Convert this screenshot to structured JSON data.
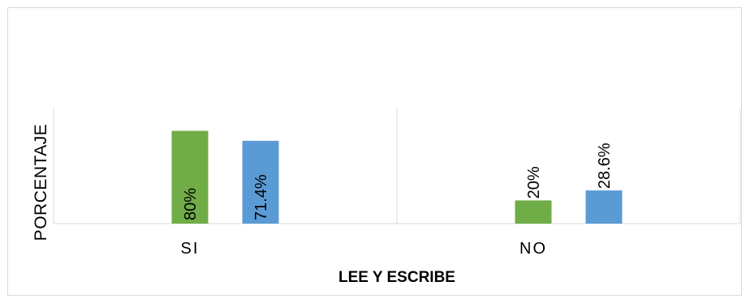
{
  "chart_data": {
    "type": "bar",
    "categories": [
      "SI",
      "NO"
    ],
    "series": [
      {
        "values": [
          80,
          20
        ],
        "labels": [
          "80%",
          "20%"
        ],
        "color": "#70ad47"
      },
      {
        "values": [
          71.4,
          28.6
        ],
        "labels": [
          "71.4%",
          "28.6%"
        ],
        "color": "#5b9bd5"
      }
    ],
    "xlabel": "LEE Y ESCRIBE",
    "ylabel": "PORCENTAJE",
    "ylim": [
      0,
      100
    ],
    "grid": false,
    "legend": "none"
  },
  "colors": {
    "axis": "#d9d9d9",
    "text": "#000000"
  }
}
